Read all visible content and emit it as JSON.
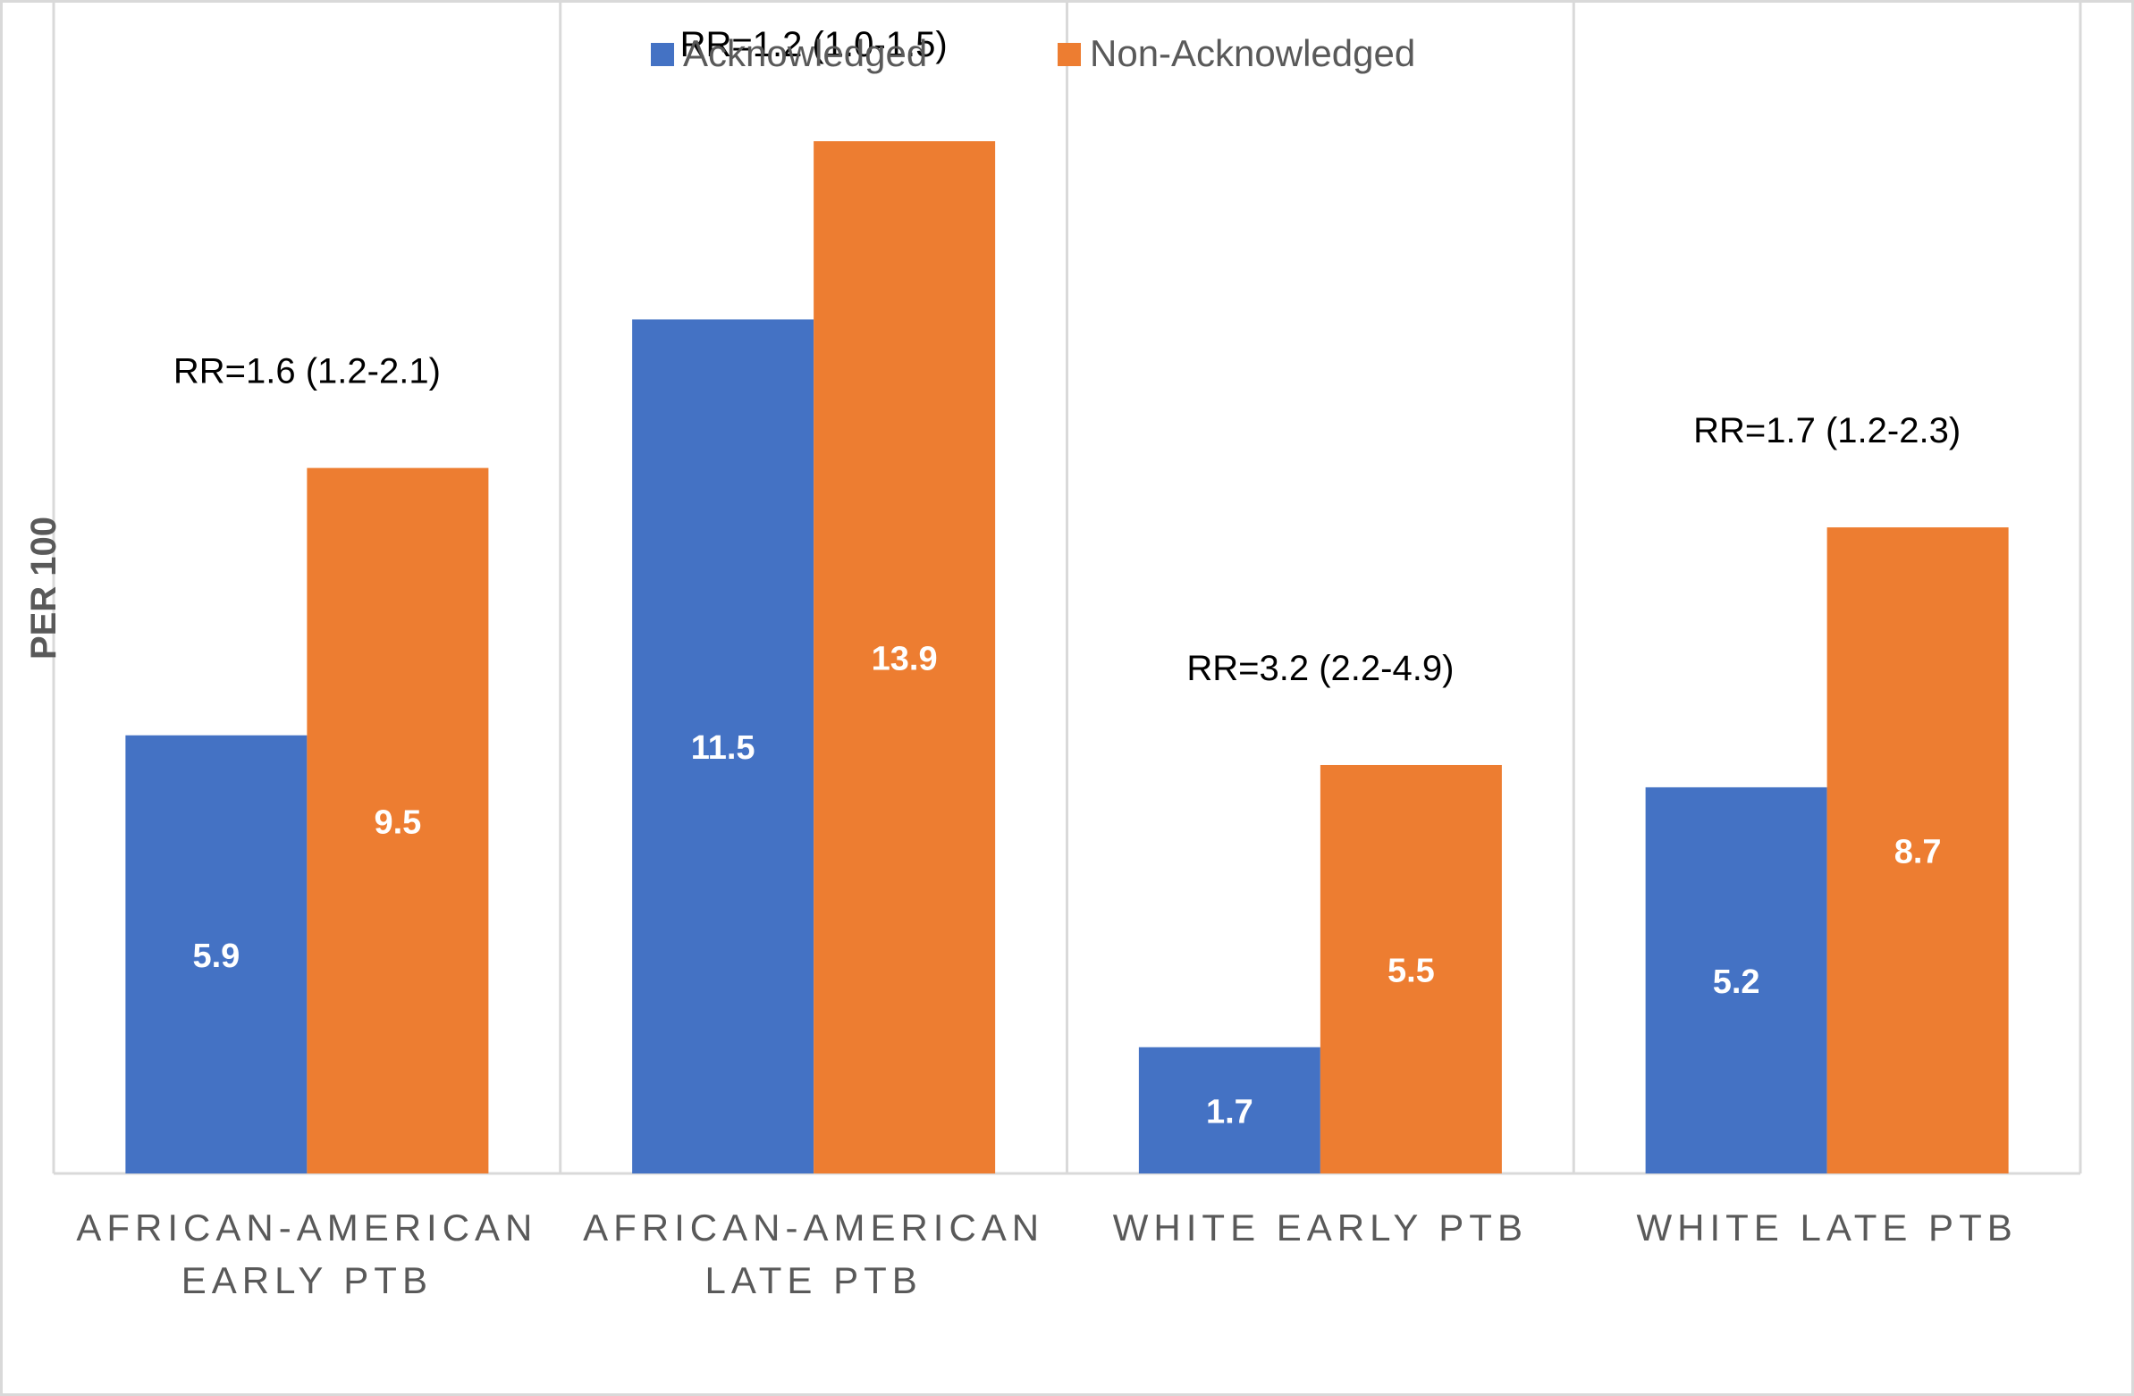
{
  "chart_data": {
    "type": "bar",
    "title": "",
    "xlabel": "",
    "ylabel": "PER 100",
    "ylim": [
      0,
      15.5
    ],
    "grid": false,
    "legend_position": "top-center",
    "categories": [
      [
        "AFRICAN-AMERICAN",
        "EARLY PTB"
      ],
      [
        "AFRICAN-AMERICAN",
        "LATE PTB"
      ],
      [
        "WHITE EARLY PTB"
      ],
      [
        "WHITE LATE PTB"
      ]
    ],
    "series": [
      {
        "name": "Acknowledged",
        "color": "#4472C4",
        "values": [
          5.9,
          11.5,
          1.7,
          5.2
        ]
      },
      {
        "name": "Non-Acknowledged",
        "color": "#ED7D31",
        "values": [
          9.5,
          13.9,
          5.5,
          8.7
        ]
      }
    ],
    "annotations": [
      "RR=1.6 (1.2-2.1)",
      "RR=1.2 (1.0-1.5)",
      "RR=3.2 (2.2-4.9)",
      "RR=1.7 (1.2-2.3)"
    ]
  }
}
